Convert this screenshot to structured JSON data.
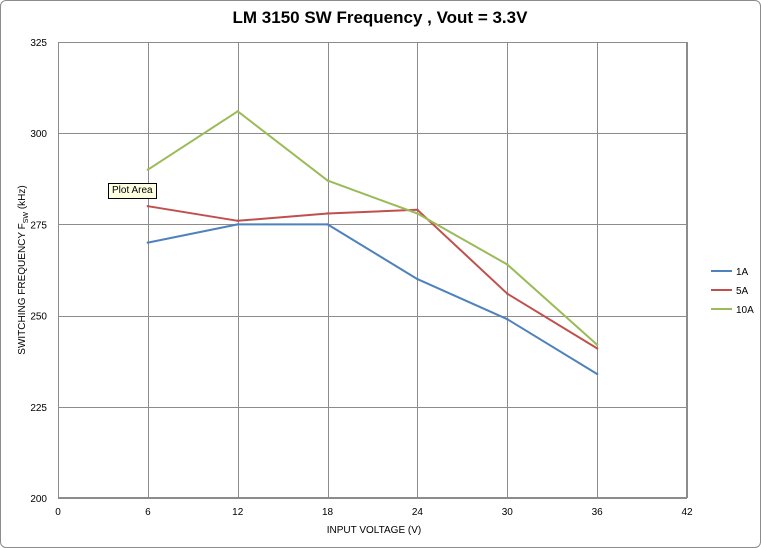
{
  "chart_data": {
    "type": "line",
    "title": "LM 3150 SW Frequency , Vout = 3.3V",
    "xlabel": "INPUT VOLTAGE (V)",
    "ylabel": "SWITCHING FREQUENCY  F",
    "ylabel_sub": "SW",
    "ylabel_suffix": " (kHz)",
    "xlim": [
      0,
      42
    ],
    "ylim": [
      200,
      325
    ],
    "x_ticks": [
      0,
      6,
      12,
      18,
      24,
      30,
      36,
      42
    ],
    "y_ticks": [
      200,
      225,
      250,
      275,
      300,
      325
    ],
    "grid": true,
    "legend_position": "right",
    "x": [
      6,
      12,
      18,
      24,
      30,
      36
    ],
    "series": [
      {
        "name": "1A",
        "color": "#4f81bd",
        "values": [
          270,
          275,
          275,
          260,
          249,
          234
        ]
      },
      {
        "name": "5A",
        "color": "#c0504d",
        "values": [
          280,
          276,
          278,
          279,
          256,
          241
        ]
      },
      {
        "name": "10A",
        "color": "#9bbb59",
        "values": [
          290,
          306,
          287,
          278,
          264,
          242
        ]
      }
    ]
  },
  "tooltip": {
    "text": "Plot Area"
  }
}
